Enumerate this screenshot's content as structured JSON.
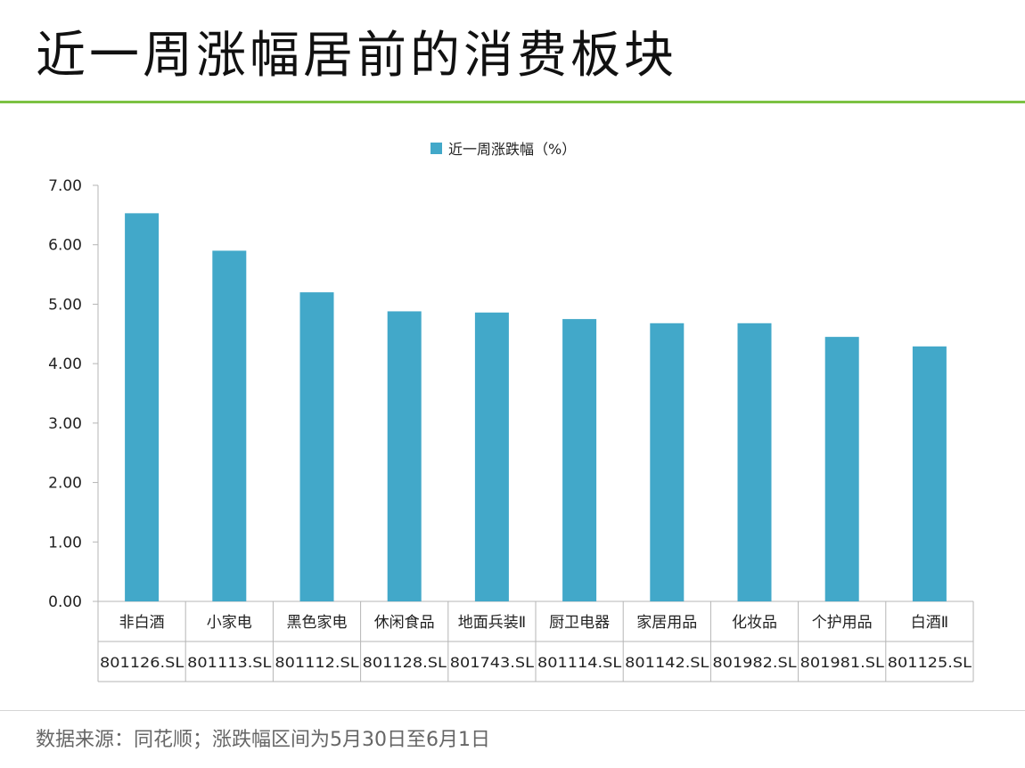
{
  "page": {
    "title": "近一周涨幅居前的消费板块",
    "source_note": "数据来源：同花顺；涨跌幅区间为5月30日至6月1日"
  },
  "colors": {
    "bar": "#42a8c9",
    "title_rule": "#7cc243"
  },
  "chart_data": {
    "type": "bar",
    "legend": "近一周涨跌幅（%）",
    "legend_position": "top-center",
    "categories": [
      "非白酒",
      "小家电",
      "黑色家电",
      "休闲食品",
      "地面兵装Ⅱ",
      "厨卫电器",
      "家居用品",
      "化妆品",
      "个护用品",
      "白酒Ⅱ"
    ],
    "codes": [
      "801126.SL",
      "801113.SL",
      "801112.SL",
      "801128.SL",
      "801743.SL",
      "801114.SL",
      "801142.SL",
      "801982.SL",
      "801981.SL",
      "801125.SL"
    ],
    "values": [
      6.53,
      5.9,
      5.2,
      4.88,
      4.86,
      4.75,
      4.68,
      4.68,
      4.45,
      4.29
    ],
    "ylim": [
      0,
      7
    ],
    "yticks": [
      "0.00",
      "1.00",
      "2.00",
      "3.00",
      "4.00",
      "5.00",
      "6.00",
      "7.00"
    ],
    "grid": false
  }
}
